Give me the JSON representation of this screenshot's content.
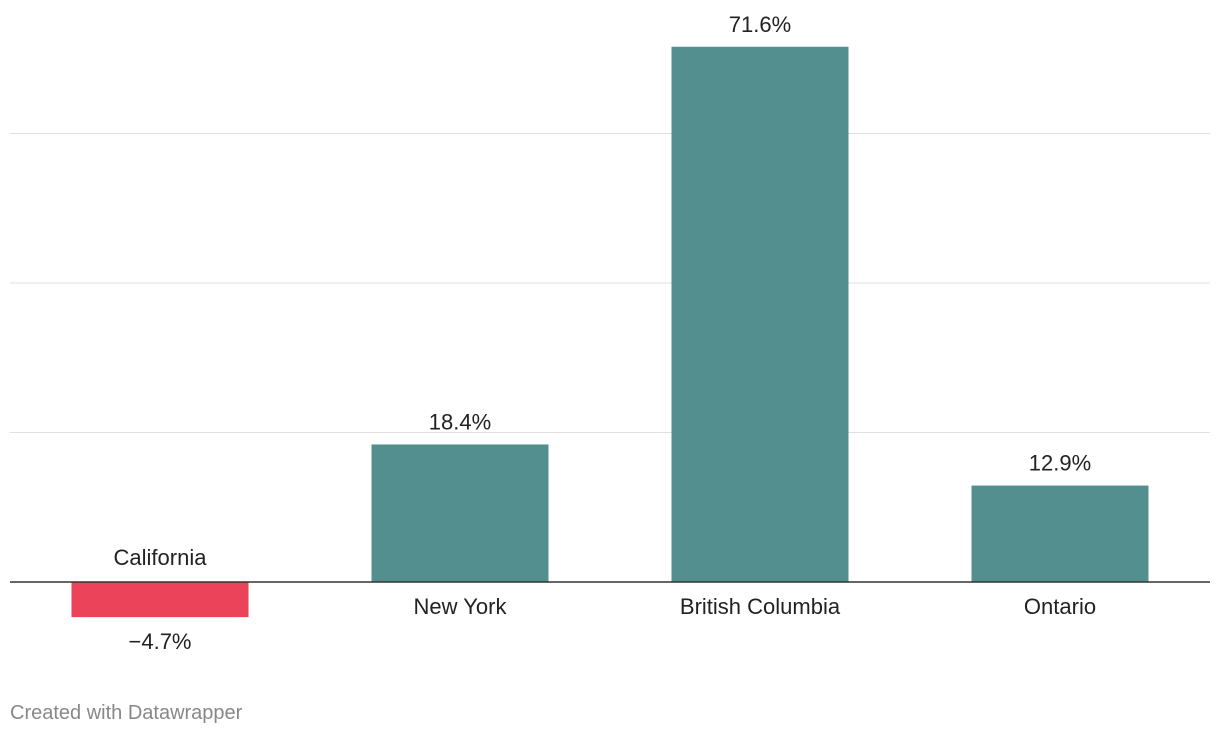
{
  "chart_data": {
    "type": "bar",
    "categories": [
      "California",
      "New York",
      "British Columbia",
      "Ontario"
    ],
    "values": [
      -4.7,
      18.4,
      71.6,
      12.9
    ],
    "value_labels": [
      "−4.7%",
      "18.4%",
      "71.6%",
      "12.9%"
    ],
    "title": "",
    "xlabel": "",
    "ylabel": "",
    "ylim": [
      -4.7,
      71.6
    ],
    "gridlines": [
      20,
      40,
      60
    ],
    "grid": true,
    "legend": "none",
    "colors": {
      "positive": "#528f8e",
      "negative": "#eb4359"
    }
  },
  "footer": {
    "credit": "Created with Datawrapper"
  }
}
